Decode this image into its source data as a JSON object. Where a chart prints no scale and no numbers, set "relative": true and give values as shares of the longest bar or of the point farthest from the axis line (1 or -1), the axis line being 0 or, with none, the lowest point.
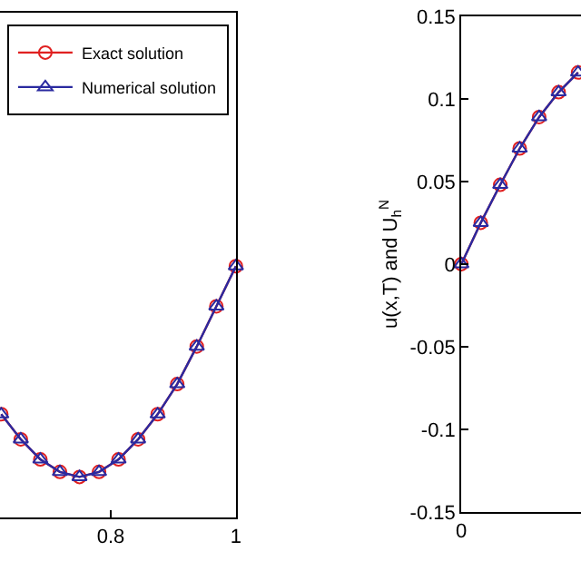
{
  "chart_data": [
    {
      "type": "line",
      "relative": true,
      "x": [
        0.625,
        0.65625,
        0.6875,
        0.71875,
        0.75,
        0.78125,
        0.8125,
        0.84375,
        0.875,
        0.90625,
        0.9375,
        0.96875,
        1
      ],
      "xlim": [
        0.623,
        1
      ],
      "xticks": [
        0.8,
        1
      ],
      "tick_labels": "x",
      "legend": "top",
      "grid": false,
      "series": [
        {
          "name": "Exact solution",
          "color": "#e02020",
          "marker": "circle",
          "values": [
            0.41,
            0.31,
            0.23,
            0.18,
            0.16,
            0.18,
            0.23,
            0.31,
            0.41,
            0.53,
            0.68,
            0.84,
            1
          ]
        },
        {
          "name": "Numerical solution",
          "color": "#2a2aa0",
          "marker": "triangle",
          "values": [
            0.41,
            0.31,
            0.23,
            0.18,
            0.16,
            0.18,
            0.23,
            0.31,
            0.41,
            0.53,
            0.68,
            0.84,
            1
          ]
        }
      ]
    },
    {
      "type": "line",
      "categories": [
        "0",
        null,
        null,
        null,
        null,
        null,
        null
      ],
      "ylabel": "u(x,T) and U$_{h}$$^{N}$",
      "ylim": [
        -0.15,
        0.15
      ],
      "yticks": [
        -0.15,
        -0.1,
        -0.05,
        0,
        0.05,
        0.1,
        0.15
      ],
      "grid": false,
      "legend": false,
      "series": [
        {
          "color": "#e02020",
          "marker": "circle",
          "values": [
            0,
            0.025,
            0.048,
            0.07,
            0.089,
            0.104,
            0.116
          ]
        },
        {
          "color": "#2a2aa0",
          "marker": "triangle",
          "values": [
            0,
            0.025,
            0.048,
            0.07,
            0.089,
            0.104,
            0.116
          ]
        }
      ]
    }
  ]
}
